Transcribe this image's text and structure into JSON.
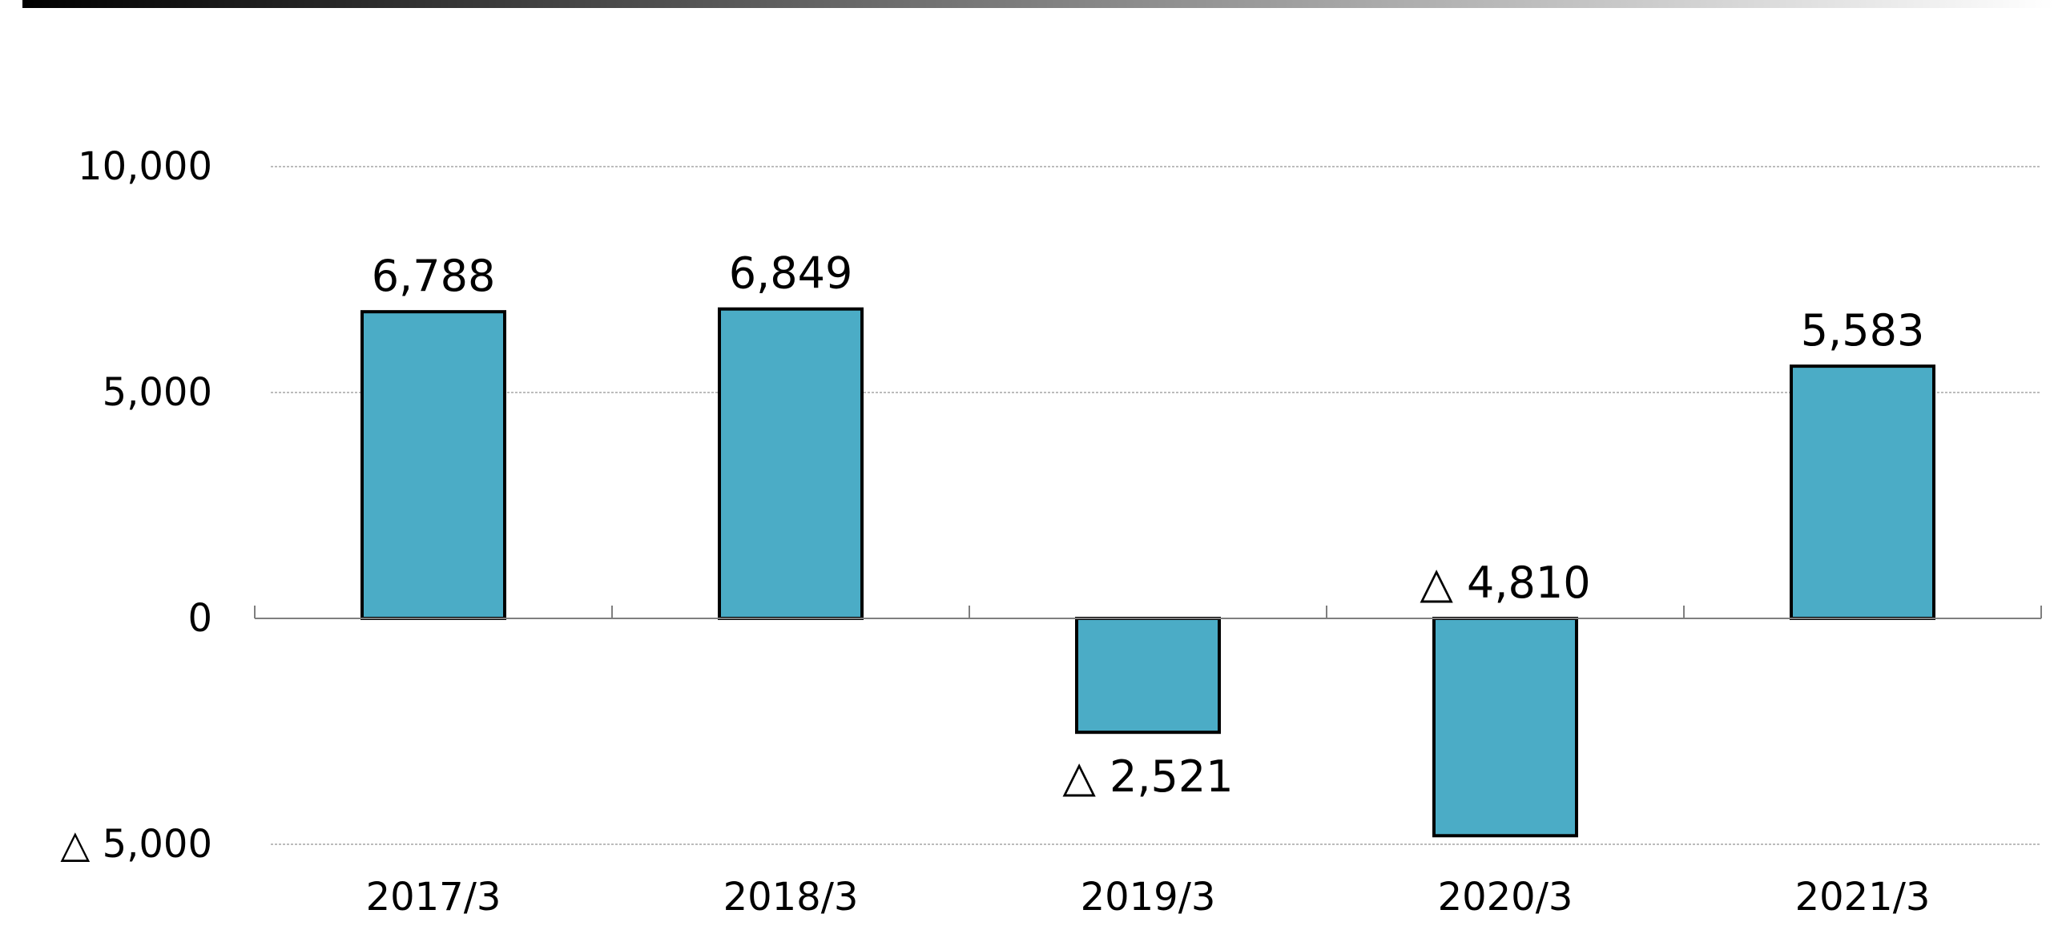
{
  "chart_data": {
    "type": "bar",
    "categories": [
      "2017/3",
      "2018/3",
      "2019/3",
      "2020/3",
      "2021/3"
    ],
    "values": [
      6788,
      6849,
      -2521,
      -4810,
      5583
    ],
    "data_labels": [
      "6,788",
      "6,849",
      "△ 2,521",
      "△ 4,810",
      "5,583"
    ],
    "y_tick_values": [
      10000,
      5000,
      0,
      -5000
    ],
    "y_tick_labels": [
      "10,000",
      "5,000",
      "0",
      "△ 5,000"
    ],
    "ylim": [
      -5000,
      10000
    ],
    "grid": true,
    "title": "",
    "xlabel": "",
    "ylabel": ""
  },
  "colors": {
    "bar_fill": "#4BACC6",
    "bar_stroke": "#000000",
    "gridline": "#a6a6a6",
    "axis": "#7f7f7f",
    "header_bar_start": "#000000",
    "header_bar_end": "#ffffff"
  }
}
